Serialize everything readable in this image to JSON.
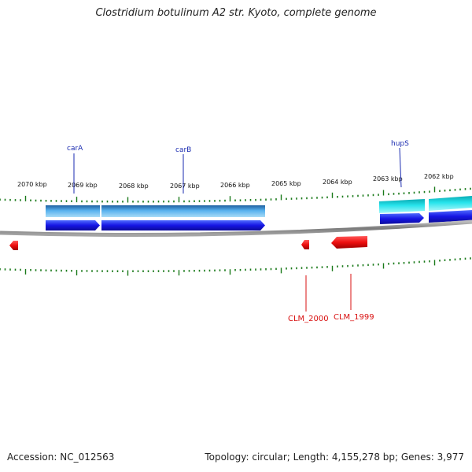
{
  "title": "Clostridium botulinum A2 str. Kyoto, complete genome",
  "footer": {
    "accession": "Accession: NC_012563",
    "summary": "Topology: circular; Length: 4,155,278 bp; Genes: 3,977"
  },
  "ticks": {
    "labels": [
      "2070 kbp",
      "2069 kbp",
      "2068 kbp",
      "2067 kbp",
      "2066 kbp",
      "2065 kbp",
      "2064 kbp",
      "2063 kbp",
      "2062 kbp"
    ]
  },
  "forward_genes": [
    {
      "name": "carA"
    },
    {
      "name": "carB"
    },
    {
      "name": "hupS"
    }
  ],
  "reverse_genes": [
    {
      "name": "CLM_2000"
    },
    {
      "name": "CLM_1999"
    }
  ],
  "colors": {
    "forward_cds": "#1a1ae0",
    "reverse_cds": "#e01010",
    "feature_band_blue": "#3aa0d8",
    "feature_band_cyan": "#20e0e8",
    "backbone": "#888888",
    "tick": "#1a7a1a"
  }
}
